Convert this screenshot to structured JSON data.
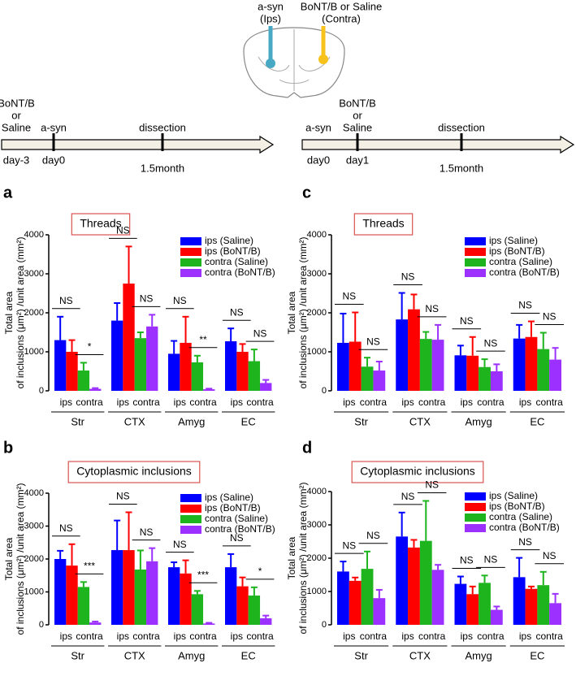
{
  "diagram": {
    "probes": [
      [
        "a-syn",
        "(Ips)"
      ],
      [
        "BoNT/B or Saline",
        "(Contra)"
      ]
    ]
  },
  "timelines": [
    {
      "events": [
        {
          "above": [
            "BoNT/B",
            "or",
            "Saline"
          ],
          "below": "day-3"
        },
        {
          "above": [
            "a-syn"
          ],
          "below": "day0"
        },
        {
          "above": [
            "dissection"
          ],
          "below": "1.5month"
        }
      ]
    },
    {
      "events": [
        {
          "above": [
            "a-syn"
          ],
          "below": "day0"
        },
        {
          "above": [
            "BoNT/B",
            "or",
            "Saline"
          ],
          "below": "day1"
        },
        {
          "above": [
            "dissection"
          ],
          "below": "1.5month"
        }
      ]
    }
  ],
  "chart_data": [
    {
      "type": "bar",
      "panel": "a",
      "title": "Threads",
      "ylabel": [
        "Total area",
        "of inclusions (μm²) /unit area (mm²)"
      ],
      "categories": [
        "Str",
        "CTX",
        "Amyg",
        "EC"
      ],
      "sublabels": [
        "ips",
        "contra"
      ],
      "ylim": [
        0,
        4000
      ],
      "yticks": [
        0,
        1000,
        2000,
        3000,
        4000
      ],
      "series": [
        {
          "name": "ips (Saline)",
          "color": "#0000ff",
          "values": [
            1300,
            1800,
            950,
            1270
          ],
          "errors": [
            600,
            450,
            330,
            330
          ]
        },
        {
          "name": "ips (BoNT/B)",
          "color": "#ff0000",
          "values": [
            1000,
            2750,
            1230,
            1000
          ],
          "errors": [
            300,
            950,
            670,
            200
          ]
        },
        {
          "name": "contra (Saline)",
          "color": "#1db41d",
          "values": [
            520,
            1350,
            730,
            760
          ],
          "errors": [
            200,
            150,
            170,
            300
          ]
        },
        {
          "name": "contra (BoNT/B)",
          "color": "#9b30ff",
          "values": [
            50,
            1650,
            40,
            200
          ],
          "errors": [
            20,
            300,
            15,
            80
          ]
        }
      ],
      "significance": [
        [
          "NS",
          "*"
        ],
        [
          "NS",
          "NS"
        ],
        [
          "NS",
          "**"
        ],
        [
          "NS",
          "NS"
        ]
      ]
    },
    {
      "type": "bar",
      "panel": "b",
      "title": "Cytoplasmic inclusions",
      "ylabel": [
        "Total area",
        "of inclusions (μm²) /unit area (mm²)"
      ],
      "categories": [
        "Str",
        "CTX",
        "Amyg",
        "EC"
      ],
      "sublabels": [
        "ips",
        "contra"
      ],
      "ylim": [
        0,
        4000
      ],
      "yticks": [
        0,
        1000,
        2000,
        3000,
        4000
      ],
      "series": [
        {
          "name": "ips (Saline)",
          "color": "#0000ff",
          "values": [
            2000,
            2270,
            1750,
            1750
          ],
          "errors": [
            250,
            900,
            150,
            400
          ]
        },
        {
          "name": "ips (BoNT/B)",
          "color": "#ff0000",
          "values": [
            1800,
            2270,
            1560,
            1170
          ],
          "errors": [
            650,
            1150,
            400,
            270
          ]
        },
        {
          "name": "contra (Saline)",
          "color": "#1db41d",
          "values": [
            1150,
            1680,
            930,
            890
          ],
          "errors": [
            150,
            580,
            100,
            250
          ]
        },
        {
          "name": "contra (BoNT/B)",
          "color": "#9b30ff",
          "values": [
            70,
            1930,
            40,
            200
          ],
          "errors": [
            30,
            400,
            20,
            80
          ]
        }
      ],
      "significance": [
        [
          "NS",
          "***"
        ],
        [
          "NS",
          "NS"
        ],
        [
          "NS",
          "***"
        ],
        [
          "NS",
          "*"
        ]
      ]
    },
    {
      "type": "bar",
      "panel": "c",
      "title": "Threads",
      "ylabel": [
        "Total area",
        "of inclusions (μm²) /unit area (mm²)"
      ],
      "categories": [
        "Str",
        "CTX",
        "Amyg",
        "EC"
      ],
      "sublabels": [
        "ips",
        "contra"
      ],
      "ylim": [
        0,
        4000
      ],
      "yticks": [
        0,
        1000,
        2000,
        3000,
        4000
      ],
      "series": [
        {
          "name": "ips (Saline)",
          "color": "#0000ff",
          "values": [
            1230,
            1830,
            910,
            1340
          ],
          "errors": [
            750,
            680,
            250,
            350
          ]
        },
        {
          "name": "ips (BoNT/B)",
          "color": "#ff0000",
          "values": [
            1260,
            2090,
            900,
            1380
          ],
          "errors": [
            750,
            380,
            480,
            400
          ]
        },
        {
          "name": "contra (Saline)",
          "color": "#1db41d",
          "values": [
            620,
            1330,
            610,
            1070
          ],
          "errors": [
            230,
            180,
            200,
            420
          ]
        },
        {
          "name": "contra (BoNT/B)",
          "color": "#9b30ff",
          "values": [
            520,
            1310,
            500,
            800
          ],
          "errors": [
            230,
            380,
            180,
            300
          ]
        }
      ],
      "significance": [
        [
          "NS",
          "NS"
        ],
        [
          "NS",
          "NS"
        ],
        [
          "NS",
          "NS"
        ],
        [
          "NS",
          "NS"
        ]
      ]
    },
    {
      "type": "bar",
      "panel": "d",
      "title": "Cytoplasmic inclusions",
      "ylabel": [
        "Total area",
        "of inclusions (μm²) /unit area (mm²)"
      ],
      "categories": [
        "Str",
        "CTX",
        "Amyg",
        "EC"
      ],
      "sublabels": [
        "ips",
        "contra"
      ],
      "ylim": [
        0,
        4000
      ],
      "yticks": [
        0,
        1000,
        2000,
        3000,
        4000
      ],
      "series": [
        {
          "name": "ips (Saline)",
          "color": "#0000ff",
          "values": [
            1600,
            2650,
            1230,
            1430
          ],
          "errors": [
            300,
            720,
            220,
            580
          ]
        },
        {
          "name": "ips (BoNT/B)",
          "color": "#ff0000",
          "values": [
            1320,
            2320,
            920,
            1080
          ],
          "errors": [
            100,
            230,
            230,
            70
          ]
        },
        {
          "name": "contra (Saline)",
          "color": "#1db41d",
          "values": [
            1680,
            2520,
            1260,
            1190
          ],
          "errors": [
            520,
            1200,
            220,
            400
          ]
        },
        {
          "name": "contra (BoNT/B)",
          "color": "#9b30ff",
          "values": [
            800,
            1650,
            450,
            650
          ],
          "errors": [
            250,
            150,
            100,
            280
          ]
        }
      ],
      "significance": [
        [
          "NS",
          "NS"
        ],
        [
          "NS",
          "NS"
        ],
        [
          "NS",
          "NS"
        ],
        [
          "NS",
          "NS"
        ]
      ]
    }
  ]
}
